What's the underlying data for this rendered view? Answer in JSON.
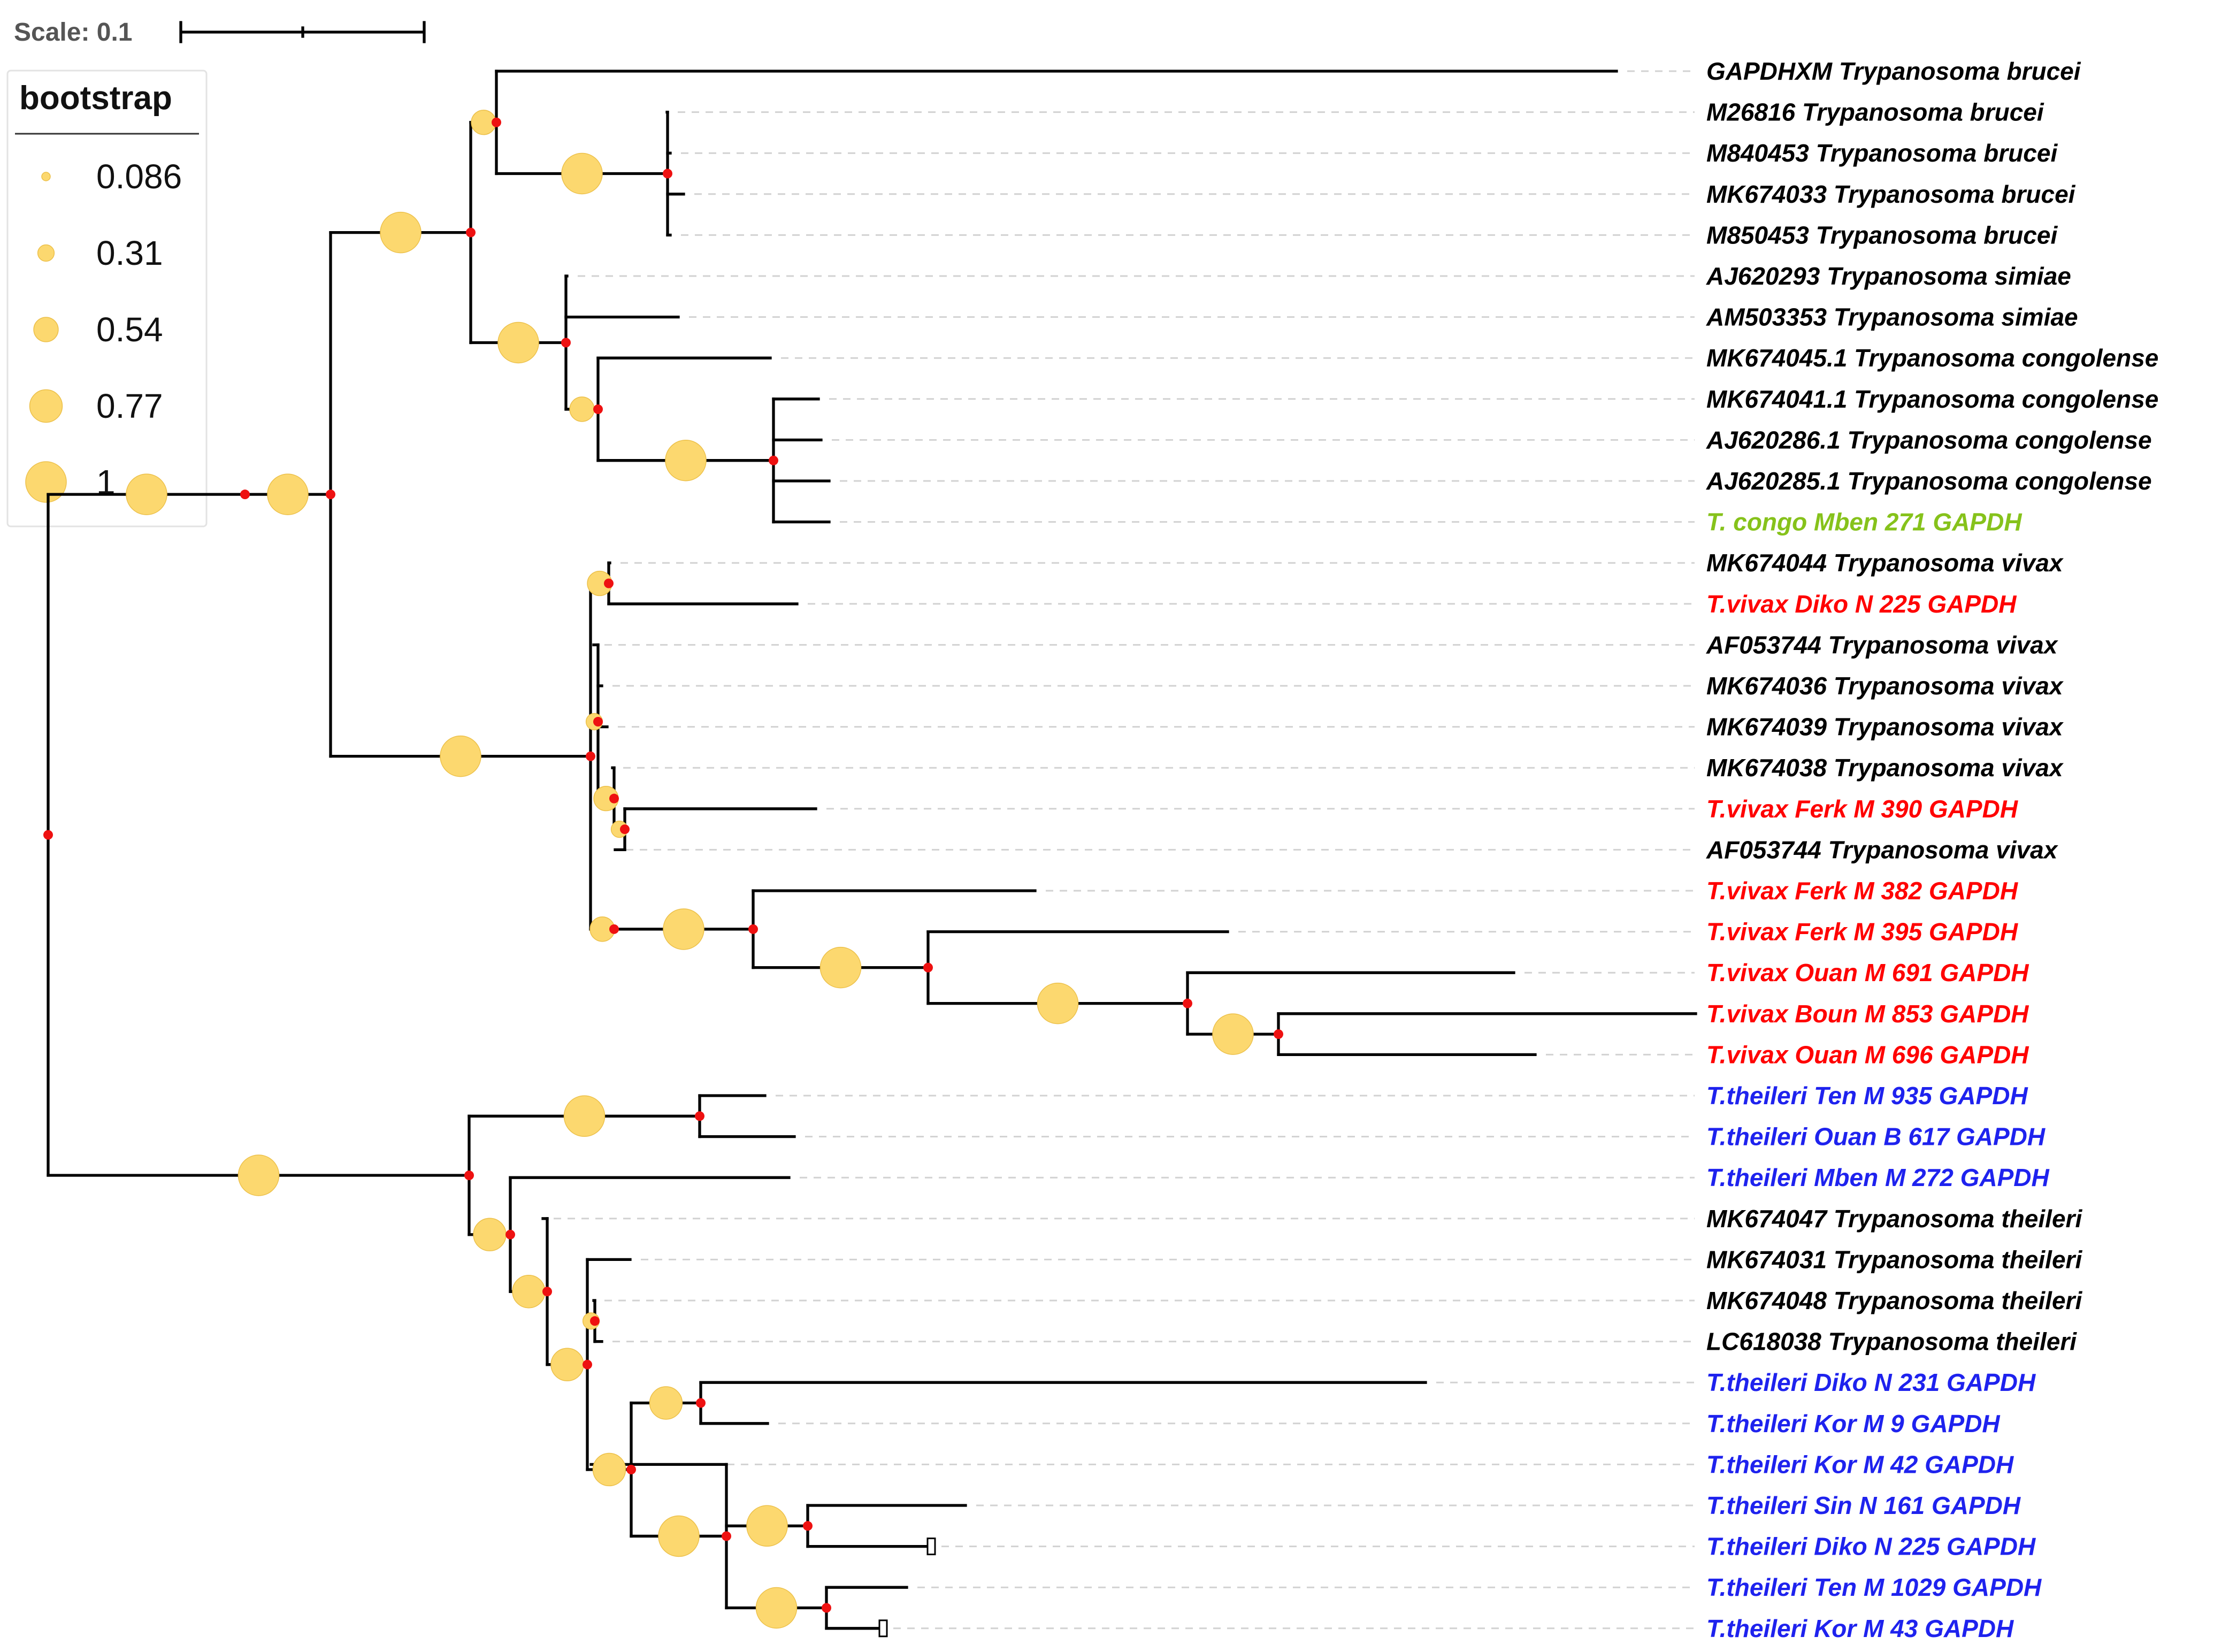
{
  "scale": {
    "label": "Scale: 0.1",
    "value": 0.1
  },
  "legend": {
    "title": "bootstrap",
    "entries": [
      {
        "label": "0.086",
        "value": 0.086
      },
      {
        "label": "0.31",
        "value": 0.31
      },
      {
        "label": "0.54",
        "value": 0.54
      },
      {
        "label": "0.77",
        "value": 0.77
      },
      {
        "label": "1",
        "value": 1
      }
    ]
  },
  "colors": {
    "reference": "#000000",
    "congo": "#86c21b",
    "vivax": "#ff0000",
    "theileri": "#1e22ee",
    "bootstrap_fill": "#fcd86f",
    "node_dot": "#ee1111"
  },
  "taxa": [
    {
      "name": "GAPDHXM Trypanosoma brucei",
      "group": "reference"
    },
    {
      "name": "M26816 Trypanosoma brucei",
      "group": "reference"
    },
    {
      "name": "M840453 Trypanosoma brucei",
      "group": "reference"
    },
    {
      "name": "MK674033 Trypanosoma brucei",
      "group": "reference"
    },
    {
      "name": "M850453 Trypanosoma brucei",
      "group": "reference"
    },
    {
      "name": "AJ620293 Trypanosoma simiae",
      "group": "reference"
    },
    {
      "name": "AM503353 Trypanosoma simiae",
      "group": "reference"
    },
    {
      "name": "MK674045.1 Trypanosoma congolense",
      "group": "reference"
    },
    {
      "name": "MK674041.1 Trypanosoma congolense",
      "group": "reference"
    },
    {
      "name": "AJ620286.1 Trypanosoma congolense",
      "group": "reference"
    },
    {
      "name": "AJ620285.1 Trypanosoma congolense",
      "group": "reference"
    },
    {
      "name": "T. congo Mben 271 GAPDH",
      "group": "congo"
    },
    {
      "name": "MK674044 Trypanosoma vivax",
      "group": "reference"
    },
    {
      "name": "T.vivax Diko N 225 GAPDH",
      "group": "vivax"
    },
    {
      "name": "AF053744 Trypanosoma vivax",
      "group": "reference"
    },
    {
      "name": "MK674036 Trypanosoma vivax",
      "group": "reference"
    },
    {
      "name": "MK674039 Trypanosoma vivax",
      "group": "reference"
    },
    {
      "name": "MK674038 Trypanosoma vivax",
      "group": "reference"
    },
    {
      "name": "T.vivax Ferk M 390 GAPDH",
      "group": "vivax"
    },
    {
      "name": "AF053744 Trypanosoma vivax",
      "group": "reference"
    },
    {
      "name": "T.vivax Ferk M 382 GAPDH",
      "group": "vivax"
    },
    {
      "name": "T.vivax Ferk M 395 GAPDH",
      "group": "vivax"
    },
    {
      "name": "T.vivax Ouan M 691 GAPDH",
      "group": "vivax"
    },
    {
      "name": "T.vivax Boun M 853 GAPDH",
      "group": "vivax"
    },
    {
      "name": "T.vivax Ouan M 696 GAPDH",
      "group": "vivax"
    },
    {
      "name": "T.theileri Ten M 935 GAPDH",
      "group": "theileri"
    },
    {
      "name": "T.theileri Ouan B 617 GAPDH",
      "group": "theileri"
    },
    {
      "name": "T.theileri Mben M 272 GAPDH",
      "group": "theileri"
    },
    {
      "name": "MK674047 Trypanosoma theileri",
      "group": "reference"
    },
    {
      "name": "MK674031 Trypanosoma theileri",
      "group": "reference"
    },
    {
      "name": "MK674048 Trypanosoma theileri",
      "group": "reference"
    },
    {
      "name": "LC618038 Trypanosoma theileri",
      "group": "reference"
    },
    {
      "name": "T.theileri Diko N 231 GAPDH",
      "group": "theileri"
    },
    {
      "name": "T.theileri Kor M 9 GAPDH",
      "group": "theileri"
    },
    {
      "name": "T.theileri Kor M 42 GAPDH",
      "group": "theileri"
    },
    {
      "name": "T.theileri Sin N 161 GAPDH",
      "group": "theileri"
    },
    {
      "name": "T.theileri Diko N 225 GAPDH",
      "group": "theileri"
    },
    {
      "name": "T.theileri Ten M 1029 GAPDH",
      "group": "theileri"
    },
    {
      "name": "T.theileri Kor M 43 GAPDH",
      "group": "theileri"
    }
  ]
}
